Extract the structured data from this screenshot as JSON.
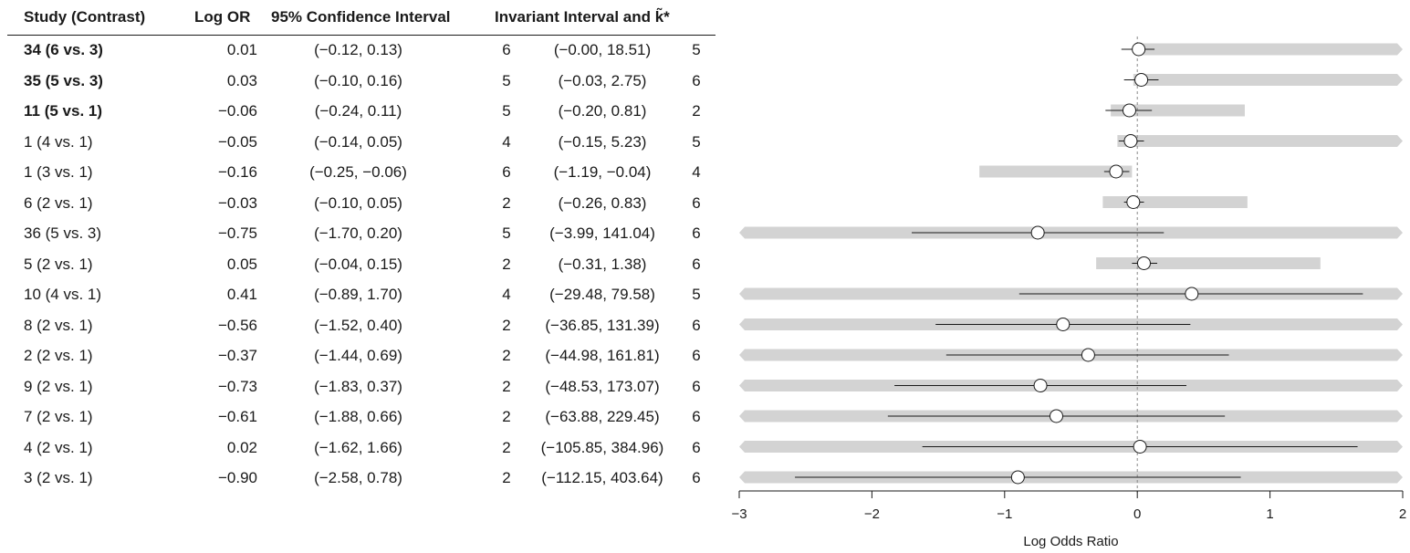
{
  "headers": {
    "study": "Study (Contrast)",
    "log_or": "Log OR",
    "ci": "95% Confidence Interval",
    "invariant": "Invariant Interval and k̃*"
  },
  "rows": [
    {
      "study": "34 (6 vs. 3)",
      "bold": true,
      "logor": "0.01",
      "ci": "(−0.12, 0.13)",
      "k1": "6",
      "inv": "(−0.00, 18.51)",
      "k2": "5"
    },
    {
      "study": "35 (5 vs. 3)",
      "bold": true,
      "logor": "0.03",
      "ci": "(−0.10, 0.16)",
      "k1": "5",
      "inv": "(−0.03, 2.75)",
      "k2": "6"
    },
    {
      "study": "11 (5 vs. 1)",
      "bold": true,
      "logor": "−0.06",
      "ci": "(−0.24, 0.11)",
      "k1": "5",
      "inv": "(−0.20, 0.81)",
      "k2": "2"
    },
    {
      "study": "1 (4 vs. 1)",
      "bold": false,
      "logor": "−0.05",
      "ci": "(−0.14, 0.05)",
      "k1": "4",
      "inv": "(−0.15, 5.23)",
      "k2": "5"
    },
    {
      "study": "1 (3 vs. 1)",
      "bold": false,
      "logor": "−0.16",
      "ci": "(−0.25, −0.06)",
      "k1": "6",
      "inv": "(−1.19, −0.04)",
      "k2": "4"
    },
    {
      "study": "6 (2 vs. 1)",
      "bold": false,
      "logor": "−0.03",
      "ci": "(−0.10, 0.05)",
      "k1": "2",
      "inv": "(−0.26, 0.83)",
      "k2": "6"
    },
    {
      "study": "36 (5 vs. 3)",
      "bold": false,
      "logor": "−0.75",
      "ci": "(−1.70, 0.20)",
      "k1": "5",
      "inv": "(−3.99, 141.04)",
      "k2": "6"
    },
    {
      "study": "5 (2 vs. 1)",
      "bold": false,
      "logor": "0.05",
      "ci": "(−0.04, 0.15)",
      "k1": "2",
      "inv": "(−0.31, 1.38)",
      "k2": "6"
    },
    {
      "study": "10 (4 vs. 1)",
      "bold": false,
      "logor": "0.41",
      "ci": "(−0.89, 1.70)",
      "k1": "4",
      "inv": "(−29.48, 79.58)",
      "k2": "5"
    },
    {
      "study": "8 (2 vs. 1)",
      "bold": false,
      "logor": "−0.56",
      "ci": "(−1.52, 0.40)",
      "k1": "2",
      "inv": "(−36.85, 131.39)",
      "k2": "6"
    },
    {
      "study": "2 (2 vs. 1)",
      "bold": false,
      "logor": "−0.37",
      "ci": "(−1.44, 0.69)",
      "k1": "2",
      "inv": "(−44.98, 161.81)",
      "k2": "6"
    },
    {
      "study": "9 (2 vs. 1)",
      "bold": false,
      "logor": "−0.73",
      "ci": "(−1.83, 0.37)",
      "k1": "2",
      "inv": "(−48.53, 173.07)",
      "k2": "6"
    },
    {
      "study": "7 (2 vs. 1)",
      "bold": false,
      "logor": "−0.61",
      "ci": "(−1.88, 0.66)",
      "k1": "2",
      "inv": "(−63.88, 229.45)",
      "k2": "6"
    },
    {
      "study": "4 (2 vs. 1)",
      "bold": false,
      "logor": "0.02",
      "ci": "(−1.62, 1.66)",
      "k1": "2",
      "inv": "(−105.85, 384.96)",
      "k2": "6"
    },
    {
      "study": "3 (2 vs. 1)",
      "bold": false,
      "logor": "−0.90",
      "ci": "(−2.58, 0.78)",
      "k1": "2",
      "inv": "(−112.15, 403.64)",
      "k2": "6"
    }
  ],
  "chart_data": {
    "type": "forest",
    "xlabel": "Log Odds Ratio",
    "xlim": [
      -3,
      2
    ],
    "xticks": [
      -3,
      -2,
      -1,
      0,
      1,
      2
    ],
    "xtick_labels": [
      "−3",
      "−2",
      "−1",
      "0",
      "1",
      "2"
    ],
    "reference_line": 0,
    "colors": {
      "ci_line": "#1a1a1a",
      "invariant_band": "#d3d3d3",
      "point_fill": "#ffffff",
      "reference": "#888888"
    },
    "series": [
      {
        "estimate": 0.01,
        "ci": [
          -0.12,
          0.13
        ],
        "invariant": [
          -0.0,
          18.51
        ]
      },
      {
        "estimate": 0.03,
        "ci": [
          -0.1,
          0.16
        ],
        "invariant": [
          -0.03,
          2.75
        ]
      },
      {
        "estimate": -0.06,
        "ci": [
          -0.24,
          0.11
        ],
        "invariant": [
          -0.2,
          0.81
        ]
      },
      {
        "estimate": -0.05,
        "ci": [
          -0.14,
          0.05
        ],
        "invariant": [
          -0.15,
          5.23
        ]
      },
      {
        "estimate": -0.16,
        "ci": [
          -0.25,
          -0.06
        ],
        "invariant": [
          -1.19,
          -0.04
        ]
      },
      {
        "estimate": -0.03,
        "ci": [
          -0.1,
          0.05
        ],
        "invariant": [
          -0.26,
          0.83
        ]
      },
      {
        "estimate": -0.75,
        "ci": [
          -1.7,
          0.2
        ],
        "invariant": [
          -3.99,
          141.04
        ]
      },
      {
        "estimate": 0.05,
        "ci": [
          -0.04,
          0.15
        ],
        "invariant": [
          -0.31,
          1.38
        ]
      },
      {
        "estimate": 0.41,
        "ci": [
          -0.89,
          1.7
        ],
        "invariant": [
          -29.48,
          79.58
        ]
      },
      {
        "estimate": -0.56,
        "ci": [
          -1.52,
          0.4
        ],
        "invariant": [
          -36.85,
          131.39
        ]
      },
      {
        "estimate": -0.37,
        "ci": [
          -1.44,
          0.69
        ],
        "invariant": [
          -44.98,
          161.81
        ]
      },
      {
        "estimate": -0.73,
        "ci": [
          -1.83,
          0.37
        ],
        "invariant": [
          -48.53,
          173.07
        ]
      },
      {
        "estimate": -0.61,
        "ci": [
          -1.88,
          0.66
        ],
        "invariant": [
          -63.88,
          229.45
        ]
      },
      {
        "estimate": 0.02,
        "ci": [
          -1.62,
          1.66
        ],
        "invariant": [
          -105.85,
          384.96
        ]
      },
      {
        "estimate": -0.9,
        "ci": [
          -2.58,
          0.78
        ],
        "invariant": [
          -112.15,
          403.64
        ]
      }
    ]
  }
}
